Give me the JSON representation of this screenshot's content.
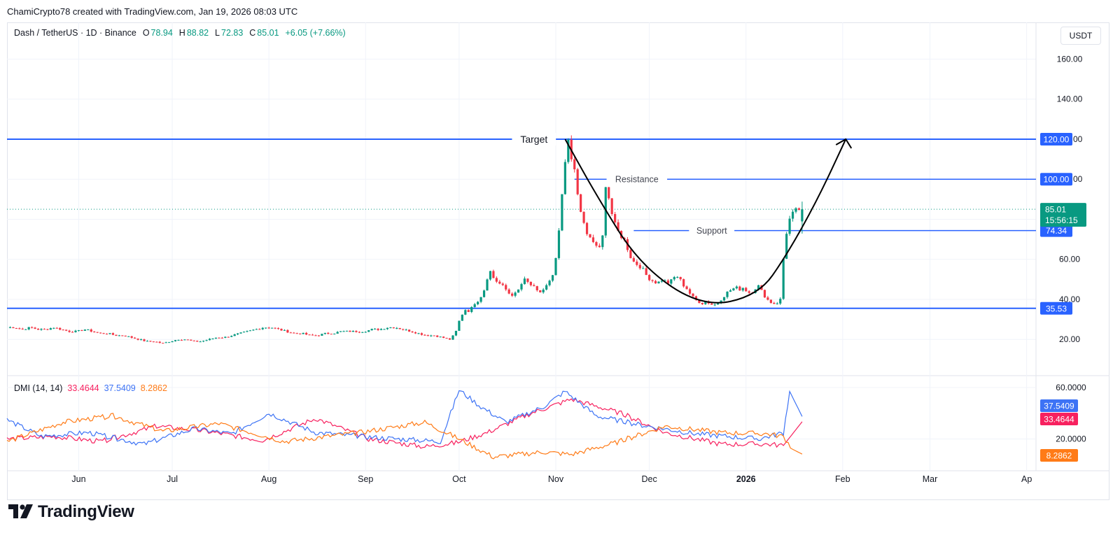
{
  "header": {
    "credit": "ChamiCrypto78 created with TradingView.com, Jan 19, 2026 08:03 UTC"
  },
  "legend": {
    "symbol": "Dash / TetherUS · 1D · Binance",
    "open_label": "O",
    "open": "78.94",
    "high_label": "H",
    "high": "88.82",
    "low_label": "L",
    "low": "72.83",
    "close_label": "C",
    "close": "85.01",
    "change": "+6.05 (+7.66%)"
  },
  "currency": "USDT",
  "dmi_legend": {
    "label": "DMI (14, 14)",
    "adx": "33.4644",
    "plus_di": "37.5409",
    "minus_di": "8.2862"
  },
  "brand": {
    "name": "TradingView"
  },
  "colors": {
    "up": "#089981",
    "down": "#f23645",
    "level": "#2962ff",
    "adx": "#f7215f",
    "plus_di": "#3d73f5",
    "minus_di": "#ff7b17",
    "curve": "#000000"
  },
  "chart_data": [
    {
      "type": "candlestick",
      "title": "Dash / TetherUS · 1D · Binance",
      "ylim": [
        11,
        164
      ],
      "y_ticks": [
        "20.00",
        "40.00",
        "60.00",
        "80.00",
        "100.00",
        "120.00",
        "140.00",
        "160.00"
      ],
      "x_ticks": [
        "Jun",
        "Jul",
        "Aug",
        "Sep",
        "Oct",
        "Nov",
        "Dec",
        "2026",
        "Feb",
        "Mar",
        "Ap"
      ],
      "x_range": [
        "2025-05-09",
        "2026-04-04"
      ],
      "levels": [
        {
          "name": "Target",
          "value": 120.0,
          "price_label": "120.00"
        },
        {
          "name": "Resistance",
          "value": 100.0,
          "price_label": "100.00"
        },
        {
          "name": "Support",
          "value": 74.34,
          "price_label": "74.34"
        },
        {
          "name": "",
          "value": 35.53,
          "price_label": "35.53"
        }
      ],
      "last_price": {
        "value": 85.01,
        "label": "85.01",
        "countdown": "15:56:15"
      },
      "annotations": [
        "Target",
        "Resistance",
        "Support"
      ],
      "pattern_curve": {
        "points": [
          [
            "2025-11-04",
            120
          ],
          [
            "2025-11-14",
            92
          ],
          [
            "2025-11-28",
            57
          ],
          [
            "2025-12-18",
            36
          ],
          [
            "2026-01-05",
            42
          ],
          [
            "2026-01-14",
            62
          ],
          [
            "2026-01-24",
            90
          ],
          [
            "2026-02-02",
            120
          ]
        ],
        "arrow_end": [
          "2026-02-02",
          120
        ]
      },
      "series_segments": [
        {
          "from": "2025-05-09",
          "to": "2025-09-28",
          "values": [
            26,
            26,
            25,
            26,
            25,
            25,
            26,
            25,
            24,
            24,
            25,
            24,
            23,
            23,
            22,
            22,
            21,
            20,
            19,
            19,
            18,
            19,
            20,
            20,
            19,
            19,
            20,
            21,
            21,
            22,
            23,
            24,
            25,
            26,
            26,
            25,
            24,
            23,
            23,
            22,
            22,
            23,
            23,
            24,
            24,
            24,
            24,
            25,
            25,
            26,
            26,
            25,
            24,
            23,
            22,
            22,
            21,
            20
          ]
        },
        {
          "from": "2025-09-28",
          "to": "2025-11-05",
          "values": [
            21,
            22,
            30,
            35,
            34,
            38,
            40,
            45,
            55,
            50,
            48,
            46,
            43,
            42,
            45,
            50,
            48,
            46,
            43,
            45,
            48,
            52,
            70,
            100,
            120
          ]
        },
        {
          "from": "2025-11-05",
          "to": "2026-01-18",
          "values": [
            120,
            110,
            100,
            85,
            80,
            72,
            70,
            68,
            66,
            64,
            98,
            90,
            80,
            75,
            72,
            70,
            65,
            60,
            58,
            57,
            55,
            52,
            50,
            49,
            48,
            50,
            49,
            48,
            50,
            52,
            50,
            47,
            45,
            42,
            40,
            39,
            38,
            39,
            38,
            37,
            38,
            40,
            42,
            44,
            45,
            46,
            45,
            46,
            44,
            43,
            45,
            47,
            44,
            41,
            39,
            38,
            38,
            40,
            65,
            78,
            82,
            84,
            85
          ]
        }
      ],
      "last_candle": {
        "date": "2026-01-19",
        "open": 78.94,
        "high": 88.82,
        "low": 72.83,
        "close": 85.01
      }
    },
    {
      "type": "line",
      "title": "DMI (14, 14)",
      "ylim": [
        -3,
        66
      ],
      "y_ticks": [
        "20.0000",
        "60.0000"
      ],
      "series": [
        {
          "name": "ADX",
          "color": "#f7215f",
          "last": 33.4644,
          "last_label": "33.4644",
          "points": [
            [
              "2025-05-09",
              20
            ],
            [
              "2025-05-24",
              22
            ],
            [
              "2025-06-08",
              18
            ],
            [
              "2025-06-26",
              30
            ],
            [
              "2025-07-12",
              26
            ],
            [
              "2025-07-30",
              19
            ],
            [
              "2025-08-16",
              36
            ],
            [
              "2025-09-02",
              20
            ],
            [
              "2025-09-20",
              14
            ],
            [
              "2025-09-30",
              17
            ],
            [
              "2025-10-10",
              25
            ],
            [
              "2025-10-24",
              40
            ],
            [
              "2025-11-06",
              51
            ],
            [
              "2025-11-22",
              40
            ],
            [
              "2025-12-06",
              25
            ],
            [
              "2025-12-24",
              16
            ],
            [
              "2026-01-08",
              16
            ],
            [
              "2026-01-13",
              15
            ],
            [
              "2026-01-19",
              33.4644
            ]
          ]
        },
        {
          "name": "+DI",
          "color": "#3d73f5",
          "last": 37.5409,
          "last_label": "37.5409",
          "points": [
            [
              "2025-05-09",
              35
            ],
            [
              "2025-05-20",
              22
            ],
            [
              "2025-06-04",
              25
            ],
            [
              "2025-06-22",
              16
            ],
            [
              "2025-07-08",
              28
            ],
            [
              "2025-07-20",
              24
            ],
            [
              "2025-08-01",
              40
            ],
            [
              "2025-08-16",
              25
            ],
            [
              "2025-09-05",
              21
            ],
            [
              "2025-09-25",
              18
            ],
            [
              "2025-10-01",
              58
            ],
            [
              "2025-10-08",
              45
            ],
            [
              "2025-10-16",
              33
            ],
            [
              "2025-10-28",
              45
            ],
            [
              "2025-11-04",
              57
            ],
            [
              "2025-11-14",
              38
            ],
            [
              "2025-11-28",
              31
            ],
            [
              "2025-12-16",
              24
            ],
            [
              "2026-01-05",
              20
            ],
            [
              "2026-01-13",
              25
            ],
            [
              "2026-01-15",
              57
            ],
            [
              "2026-01-19",
              37.5409
            ]
          ]
        },
        {
          "name": "-DI",
          "color": "#ff7b17",
          "last": 8.2862,
          "last_label": "8.2862",
          "points": [
            [
              "2025-05-09",
              18
            ],
            [
              "2025-05-27",
              33
            ],
            [
              "2025-06-12",
              38
            ],
            [
              "2025-06-28",
              26
            ],
            [
              "2025-07-16",
              32
            ],
            [
              "2025-08-06",
              18
            ],
            [
              "2025-08-30",
              25
            ],
            [
              "2025-09-20",
              33
            ],
            [
              "2025-10-01",
              20
            ],
            [
              "2025-10-12",
              6
            ],
            [
              "2025-10-28",
              10
            ],
            [
              "2025-11-06",
              8
            ],
            [
              "2025-11-20",
              17
            ],
            [
              "2025-12-06",
              30
            ],
            [
              "2025-12-24",
              25
            ],
            [
              "2026-01-08",
              24
            ],
            [
              "2026-01-13",
              22
            ],
            [
              "2026-01-16",
              12
            ],
            [
              "2026-01-19",
              8.2862
            ]
          ]
        }
      ]
    }
  ]
}
